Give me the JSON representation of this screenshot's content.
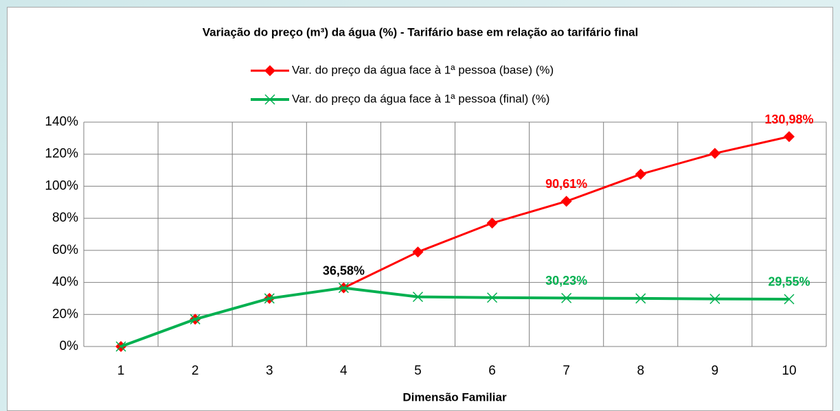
{
  "chart_data": {
    "type": "line",
    "title": "Variação do preço (m³) da água (%) - Tarifário base em relação ao tarifário final",
    "x_label": "Dimensão Familiar",
    "categories": [
      "1",
      "2",
      "3",
      "4",
      "5",
      "6",
      "7",
      "8",
      "9",
      "10"
    ],
    "series": [
      {
        "name": "Var. do preço da água face à 1ª pessoa (base) (%)",
        "color": "#ff0000",
        "marker": "diamond",
        "values": [
          0,
          17,
          30,
          36.58,
          59,
          77,
          90.61,
          107.5,
          120.5,
          130.98
        ],
        "value_labels": [
          null,
          null,
          null,
          "36,58%",
          null,
          null,
          "90,61%",
          null,
          null,
          "130,98%"
        ],
        "value_label_colors": [
          null,
          null,
          null,
          "#000000",
          null,
          null,
          "#ff0000",
          null,
          null,
          "#ff0000"
        ]
      },
      {
        "name": "Var. do preço da água face à 1ª pessoa (final) (%)",
        "color": "#00b050",
        "marker": "x",
        "values": [
          0,
          17,
          30,
          36.58,
          31,
          30.5,
          30.23,
          30,
          29.7,
          29.55
        ],
        "value_labels": [
          null,
          null,
          null,
          null,
          null,
          null,
          "30,23%",
          null,
          null,
          "29,55%"
        ],
        "value_label_colors": [
          null,
          null,
          null,
          null,
          null,
          null,
          "#00b050",
          null,
          null,
          "#00b050"
        ]
      }
    ],
    "ylim": [
      0,
      140
    ],
    "yticks": [
      {
        "value": 0,
        "label": "0%"
      },
      {
        "value": 20,
        "label": "20%"
      },
      {
        "value": 40,
        "label": "40%"
      },
      {
        "value": 60,
        "label": "60%"
      },
      {
        "value": 80,
        "label": "80%"
      },
      {
        "value": 100,
        "label": "100%"
      },
      {
        "value": 120,
        "label": "120%"
      },
      {
        "value": 140,
        "label": "140%"
      }
    ],
    "grid": true
  }
}
